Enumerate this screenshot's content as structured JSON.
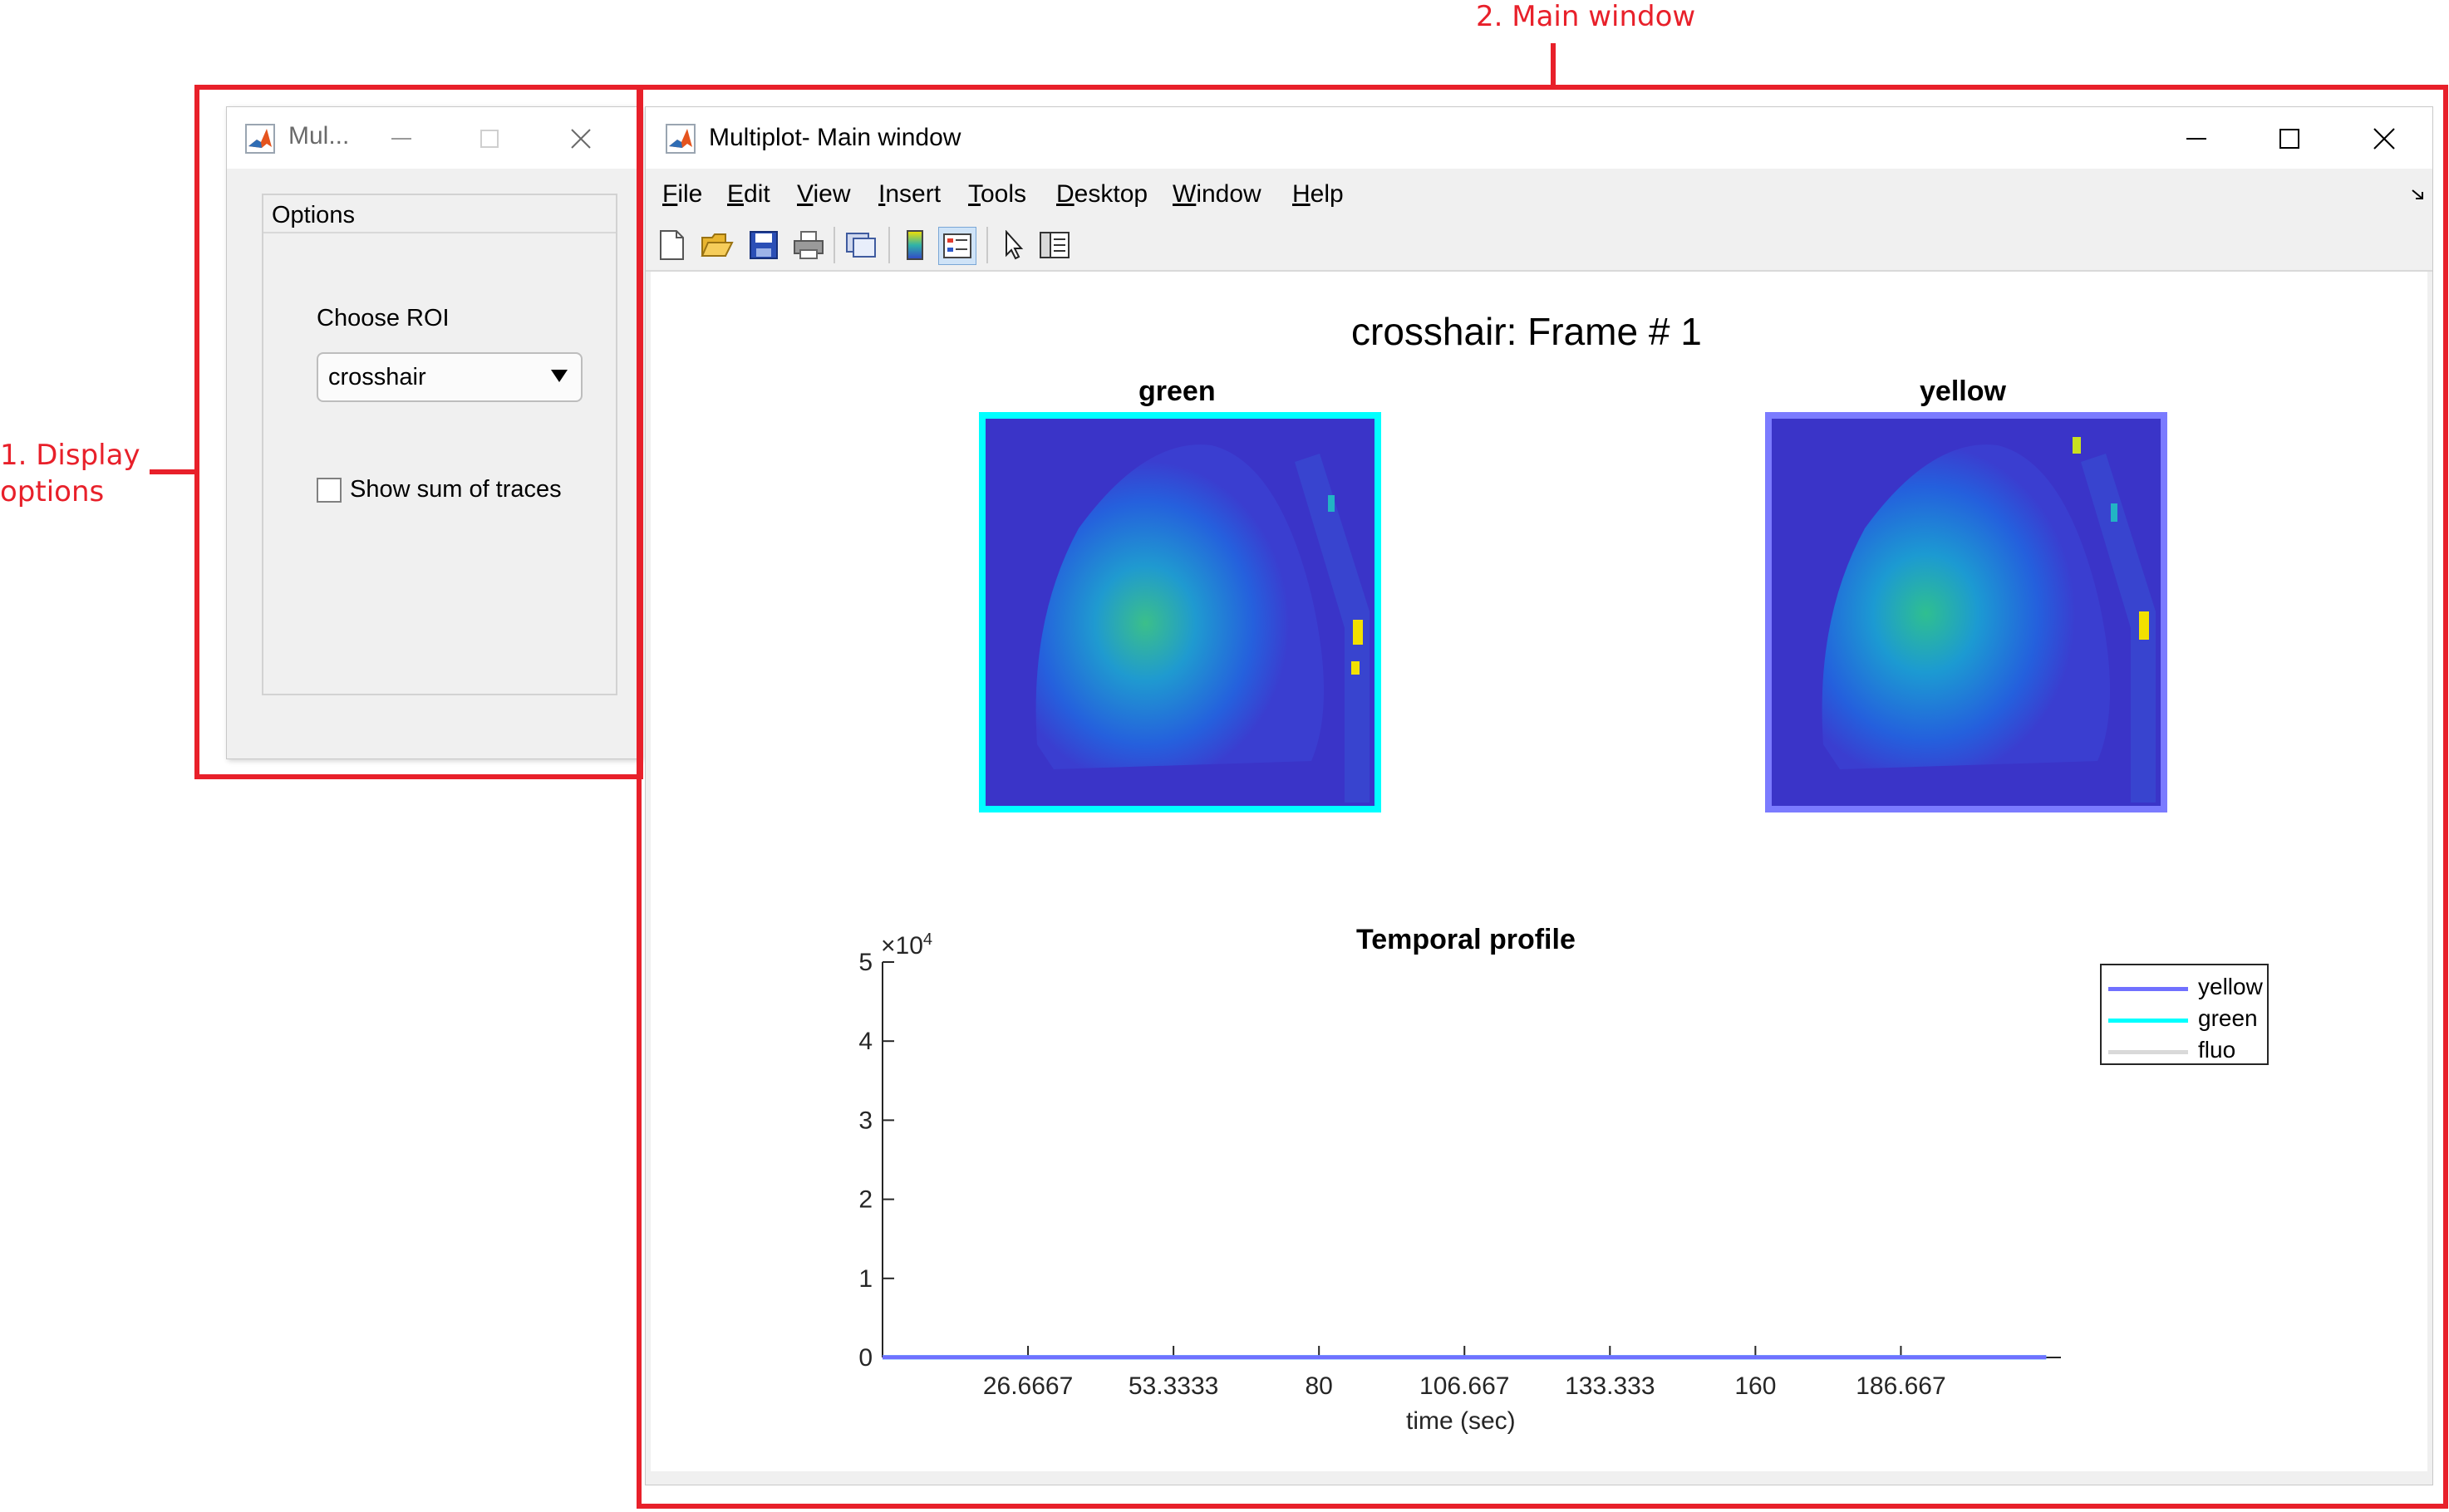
{
  "annotations": {
    "display_options": [
      "1. Display",
      "options"
    ],
    "main_window": "2. Main window",
    "color": "#e8202a"
  },
  "options_window": {
    "title": "Mul...",
    "panel_title": "Options",
    "choose_roi_label": "Choose ROI",
    "roi_selected": "crosshair",
    "show_sum_label": "Show sum of traces",
    "show_sum_checked": false
  },
  "main_window": {
    "title": "Multiplot- Main window",
    "menu": [
      "File",
      "Edit",
      "View",
      "Insert",
      "Tools",
      "Desktop",
      "Window",
      "Help"
    ],
    "menu_mnemonics": [
      "F",
      "E",
      "V",
      "I",
      "T",
      "D",
      "W",
      "H"
    ],
    "toolbar": [
      "new-figure-icon",
      "open-file-icon",
      "save-icon",
      "print-icon",
      "link-plot-icon",
      "colorbar-icon",
      "legend-icon",
      "edit-plot-icon",
      "property-inspector-icon"
    ],
    "figure_title": "crosshair: Frame # 1",
    "images": [
      {
        "title": "green",
        "border_color": "#00ffff"
      },
      {
        "title": "yellow",
        "border_color": "#7b7bff"
      }
    ]
  },
  "chart_data": {
    "type": "line",
    "title": "Temporal profile",
    "xlabel": "time (sec)",
    "ylabel": "",
    "exponent_label": "×10",
    "exponent_power": "4",
    "xlim": [
      0,
      216
    ],
    "ylim": [
      0,
      5
    ],
    "x_ticks": [
      "26.6667",
      "53.3333",
      "80",
      "106.667",
      "133.333",
      "160",
      "186.667"
    ],
    "y_ticks": [
      "0",
      "1",
      "2",
      "3",
      "4",
      "5"
    ],
    "series": [
      {
        "name": "yellow",
        "color": "#7070ff",
        "x": [
          0,
          213.3
        ],
        "y": [
          0.002,
          0.002
        ]
      },
      {
        "name": "green",
        "color": "#00ffff",
        "x": [
          0,
          213.3
        ],
        "y": [
          0.002,
          0.002
        ]
      },
      {
        "name": "fluo",
        "color": "#d9d9d9",
        "x": [
          0,
          213.3
        ],
        "y": [
          0.001,
          0.001
        ]
      }
    ],
    "legend_position": "top-right",
    "grid": false
  }
}
